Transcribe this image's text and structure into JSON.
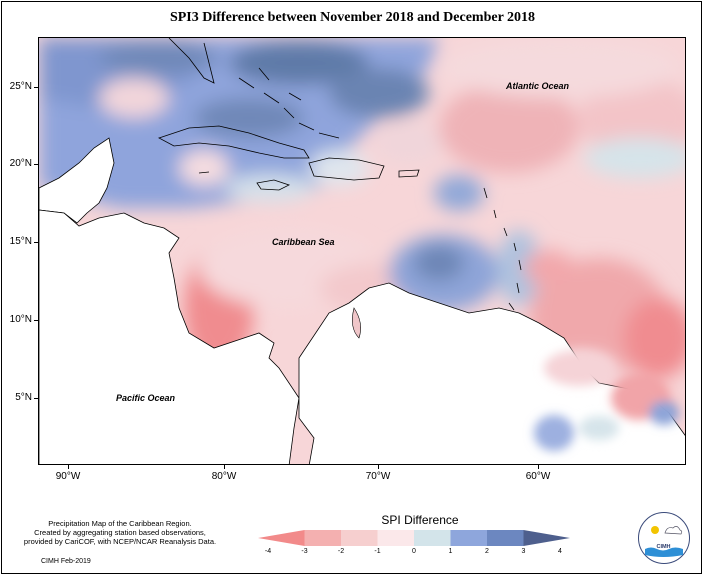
{
  "title": "SPI3 Difference between November 2018 and December 2018",
  "map": {
    "lat_ticks": [
      "25°N",
      "20°N",
      "15°N",
      "10°N",
      "5°N"
    ],
    "lon_ticks": [
      "90°W",
      "80°W",
      "70°W",
      "60°W"
    ],
    "labels": {
      "atlantic": "Atlantic Ocean",
      "caribbean": "Caribbean Sea",
      "pacific": "Pacific Ocean"
    }
  },
  "legend": {
    "title": "SPI Difference",
    "ticks": [
      "-4",
      "-3",
      "-2",
      "-1",
      "0",
      "1",
      "2",
      "3",
      "4"
    ],
    "colors": [
      "#f28a8a",
      "#f4b0b0",
      "#f6cfcf",
      "#fbe8ea",
      "#d3e4ea",
      "#8ea6dc",
      "#6c87c0",
      "#4e5f8d"
    ]
  },
  "footnote": {
    "lines": [
      "Precipitation Map of the Caribbean Region.",
      "Created by aggregating station based observations,",
      "provided by CariCOF, with NCEP/NCAR Reanalysis Data."
    ],
    "date": "CIMH Feb-2019"
  },
  "logo": {
    "text": "CIMH"
  }
}
